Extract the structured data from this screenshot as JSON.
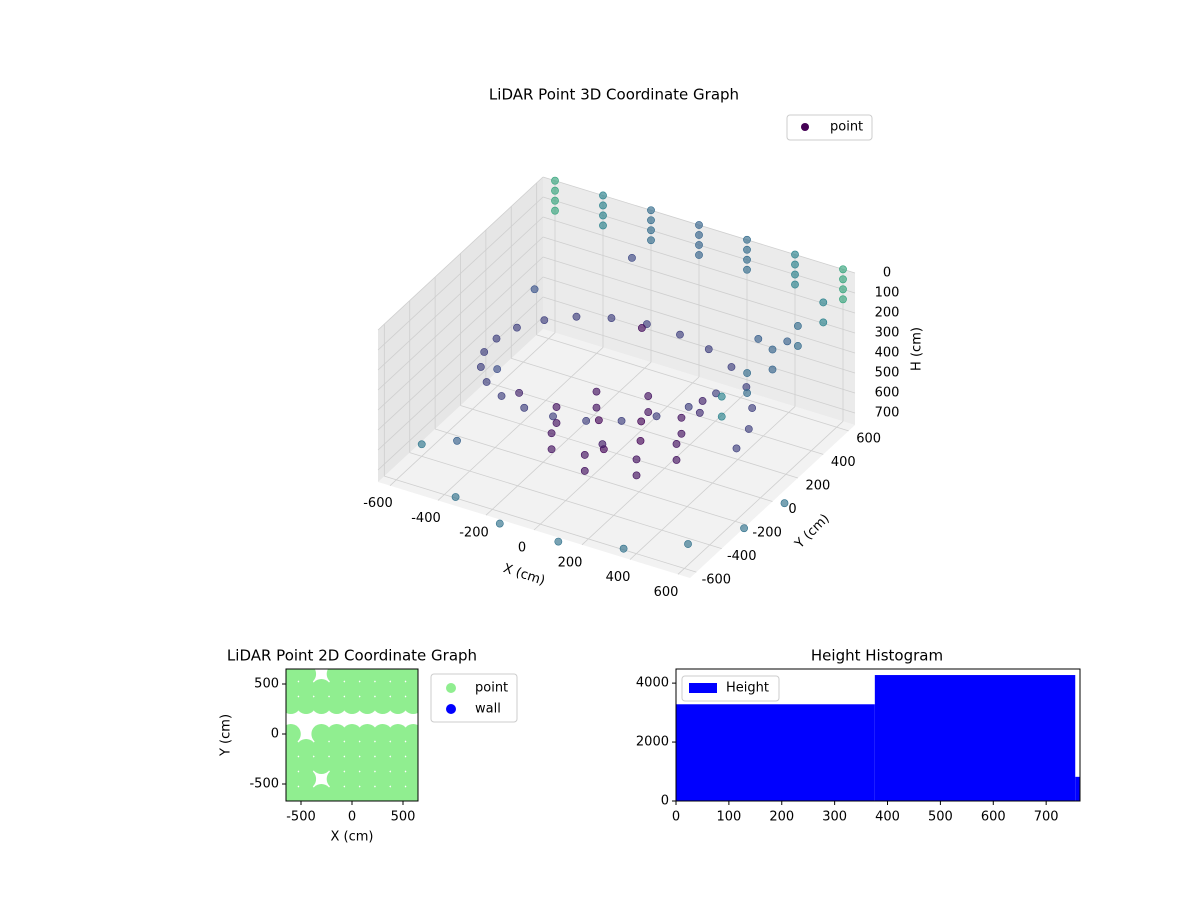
{
  "chart_data": [
    {
      "type": "scatter3d",
      "title": "LiDAR Point 3D Coordinate Graph",
      "xlabel": "X (cm)",
      "ylabel": "Y (cm)",
      "zlabel": "H (cm)",
      "xlim": [
        -650,
        650
      ],
      "ylim": [
        -650,
        650
      ],
      "zlim": [
        0,
        760
      ],
      "z_inverted": true,
      "xticks": [
        -600,
        -400,
        -200,
        0,
        200,
        400,
        600
      ],
      "yticks": [
        -600,
        -400,
        -200,
        0,
        200,
        400,
        600
      ],
      "zticks": [
        0,
        100,
        200,
        300,
        400,
        500,
        600,
        700
      ],
      "grid": true,
      "cmap": "viridis",
      "legend": "upper right",
      "series": [
        {
          "name": "point",
          "color": "#440154",
          "x": [
            500,
            483,
            433,
            354,
            250,
            129,
            0,
            -129,
            -250,
            -354,
            -433,
            -483,
            -500,
            -483,
            -433,
            -354,
            -250,
            -129,
            0,
            129,
            250,
            354,
            433,
            483,
            250,
            177,
            0,
            -177,
            -250,
            -177,
            0,
            177,
            250,
            177,
            0,
            -177,
            -250,
            -177,
            0,
            177,
            100,
            -100,
            0,
            50,
            -600,
            -400,
            -200,
            0,
            200,
            400,
            600,
            -600,
            -400,
            -200,
            0,
            200,
            400,
            600,
            -600,
            -400,
            -200,
            0,
            200,
            400,
            600,
            -600,
            -400,
            -200,
            0,
            200,
            400,
            600,
            650,
            650,
            650,
            650,
            650,
            650,
            650,
            650,
            650,
            650,
            -350,
            -122,
            122,
            350,
            536,
            658,
            700,
            -500,
            -300,
            200,
            400,
            -600,
            -200,
            300,
            -400,
            100,
            500,
            -550,
            0
          ],
          "y": [
            0,
            129,
            250,
            354,
            433,
            483,
            500,
            483,
            433,
            354,
            250,
            129,
            0,
            -129,
            -250,
            -354,
            -433,
            -483,
            -500,
            -483,
            -433,
            -354,
            -250,
            -129,
            0,
            177,
            250,
            177,
            0,
            -177,
            -250,
            -177,
            0,
            177,
            250,
            177,
            0,
            -177,
            -250,
            -177,
            0,
            50,
            -100,
            100,
            650,
            650,
            650,
            650,
            650,
            650,
            650,
            650,
            650,
            650,
            650,
            650,
            650,
            650,
            650,
            650,
            650,
            650,
            650,
            650,
            650,
            650,
            650,
            650,
            650,
            650,
            650,
            650,
            -400,
            -200,
            0,
            200,
            400,
            -400,
            -200,
            0,
            200,
            400,
            -606,
            -689,
            -689,
            -606,
            -450,
            -239,
            0,
            300,
            -200,
            300,
            -100,
            -400,
            500,
            550,
            -500,
            -300,
            400,
            100,
            200
          ],
          "z": [
            550,
            535,
            520,
            505,
            490,
            475,
            460,
            445,
            430,
            415,
            400,
            385,
            370,
            355,
            340,
            325,
            310,
            295,
            280,
            265,
            250,
            235,
            220,
            205,
            620,
            620,
            620,
            620,
            620,
            620,
            620,
            620,
            700,
            700,
            700,
            700,
            700,
            700,
            700,
            700,
            660,
            660,
            680,
            640,
            0,
            0,
            0,
            0,
            0,
            0,
            0,
            50,
            50,
            50,
            50,
            50,
            50,
            50,
            100,
            100,
            100,
            100,
            100,
            100,
            100,
            150,
            150,
            150,
            150,
            150,
            150,
            150,
            0,
            0,
            0,
            0,
            0,
            100,
            100,
            100,
            100,
            100,
            750,
            750,
            750,
            750,
            750,
            750,
            750,
            300,
            450,
            600,
            350,
            700,
            150,
            400,
            550,
            500,
            250,
            600,
            250
          ]
        }
      ]
    },
    {
      "type": "scatter",
      "title": "LiDAR Point 2D Coordinate Graph",
      "xlabel": "X (cm)",
      "ylabel": "Y (cm)",
      "xlim": [
        -647,
        647
      ],
      "ylim": [
        -670,
        650
      ],
      "xticks": [
        -500,
        0,
        500
      ],
      "yticks": [
        -500,
        0,
        500
      ],
      "legend": "outside upper right",
      "series": [
        {
          "name": "point",
          "color": "#90ee90",
          "x": [
            -600,
            -450,
            -150,
            0,
            150,
            300,
            450,
            600,
            -600,
            -450,
            -300,
            -150,
            0,
            150,
            300,
            450,
            600,
            -600,
            -450,
            -300,
            -150,
            0,
            150,
            300,
            450,
            600,
            -600,
            -300,
            -150,
            0,
            150,
            300,
            450,
            600,
            -600,
            -450,
            -300,
            -150,
            0,
            150,
            300,
            450,
            600,
            -600,
            -450,
            -300,
            -150,
            0,
            150,
            300,
            450,
            600,
            -600,
            -450,
            -150,
            0,
            150,
            300,
            450,
            600,
            -600,
            -450,
            -300,
            -150,
            0,
            150,
            300,
            450,
            600
          ],
          "y": [
            600,
            600,
            600,
            600,
            600,
            600,
            600,
            600,
            450,
            450,
            450,
            450,
            450,
            450,
            450,
            450,
            450,
            300,
            300,
            300,
            300,
            300,
            300,
            300,
            300,
            300,
            0,
            0,
            0,
            0,
            0,
            0,
            0,
            0,
            -150,
            -150,
            -150,
            -150,
            -150,
            -150,
            -150,
            -150,
            -150,
            -300,
            -300,
            -300,
            -300,
            -300,
            -300,
            -300,
            -300,
            -300,
            -450,
            -450,
            -450,
            -450,
            -450,
            -450,
            -450,
            -450,
            -600,
            -600,
            -600,
            -600,
            -600,
            -600,
            -600,
            -600,
            -600
          ]
        },
        {
          "name": "wall",
          "color": "#0000ff",
          "x": [],
          "y": []
        }
      ]
    },
    {
      "type": "histogram",
      "title": "Height Histogram",
      "name": "Height",
      "color": "#0000ff",
      "bins": [
        0,
        376,
        755,
        764
      ],
      "counts": [
        3282,
        4274,
        820
      ],
      "xlim": [
        0,
        764
      ],
      "ylim": [
        0,
        4479
      ],
      "xticks": [
        0,
        100,
        200,
        300,
        400,
        500,
        600,
        700
      ],
      "yticks": [
        0,
        2000,
        4000
      ],
      "legend": "upper left"
    }
  ]
}
